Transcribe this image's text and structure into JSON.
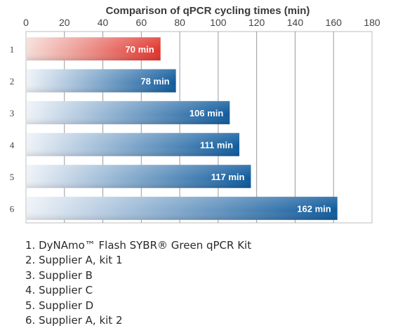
{
  "chart_data": {
    "type": "bar",
    "orientation": "horizontal",
    "title": "Comparison of qPCR cycling times (min)",
    "xlim": [
      0,
      180
    ],
    "x_ticks": [
      0,
      20,
      40,
      60,
      80,
      100,
      120,
      140,
      160,
      180
    ],
    "categories": [
      "1",
      "2",
      "3",
      "4",
      "5",
      "6"
    ],
    "values": [
      70,
      78,
      106,
      111,
      117,
      162
    ],
    "value_labels": [
      "70 min",
      "78 min",
      "106 min",
      "111 min",
      "117 min",
      "162 min"
    ],
    "bar_colors": [
      "red",
      "blue",
      "blue",
      "blue",
      "blue",
      "blue"
    ],
    "grid": "vertical",
    "colors": {
      "red_start": "#f6ddd8",
      "red_end": "#e0342c",
      "blue_start": "#eef2f8",
      "blue_end": "#0f5a9c",
      "grid": "#9a9a9a",
      "frame": "#bdbdbd"
    }
  },
  "legend": [
    "1. DyNAmo™ Flash SYBR® Green qPCR Kit",
    "2. Supplier A, kit 1",
    "3. Supplier B",
    "4. Supplier C",
    "5. Supplier D",
    "6. Supplier A, kit 2"
  ]
}
